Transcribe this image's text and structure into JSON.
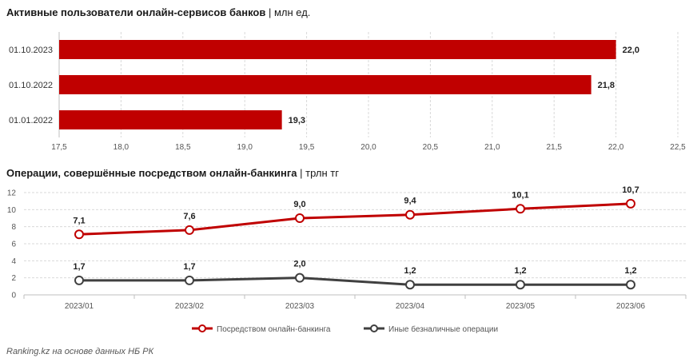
{
  "chart1": {
    "title": "Активные пользователи онлайн-сервисов банков",
    "unit": "млн ед.",
    "chart_data": {
      "type": "bar",
      "orientation": "horizontal",
      "categories": [
        "01.10.2023",
        "01.10.2022",
        "01.01.2022"
      ],
      "values": [
        22.0,
        21.8,
        19.3
      ],
      "value_labels": [
        "22,0",
        "21,8",
        "19,3"
      ],
      "xlim": [
        17.5,
        22.5
      ],
      "x_ticks": [
        "17,5",
        "18,0",
        "18,5",
        "19,0",
        "19,5",
        "20,0",
        "20,5",
        "21,0",
        "21,5",
        "22,0",
        "22,5"
      ],
      "bar_color": "#c00000",
      "grid": "vertical"
    }
  },
  "chart2": {
    "title": "Операции, совершённые посредством онлайн-банкинга",
    "unit": "трлн тг",
    "chart_data": {
      "type": "line",
      "categories": [
        "2023/01",
        "2023/02",
        "2023/03",
        "2023/04",
        "2023/05",
        "2023/06"
      ],
      "ylim": [
        0,
        12
      ],
      "y_ticks": [
        "0",
        "2",
        "4",
        "6",
        "8",
        "10",
        "12"
      ],
      "series": [
        {
          "name": "Посредством онлайн-банкинга",
          "color": "#c00000",
          "values": [
            7.1,
            7.6,
            9.0,
            9.4,
            10.1,
            10.7
          ],
          "labels": [
            "7,1",
            "7,6",
            "9,0",
            "9,4",
            "10,1",
            "10,7"
          ]
        },
        {
          "name": "Иные безналичные операции",
          "color": "#404040",
          "values": [
            1.7,
            1.7,
            2.0,
            1.2,
            1.2,
            1.2
          ],
          "labels": [
            "1,7",
            "1,7",
            "2,0",
            "1,2",
            "1,2",
            "1,2"
          ]
        }
      ],
      "legend": "bottom",
      "grid": "horizontal"
    }
  },
  "source": "Ranking.kz на основе данных НБ РК"
}
